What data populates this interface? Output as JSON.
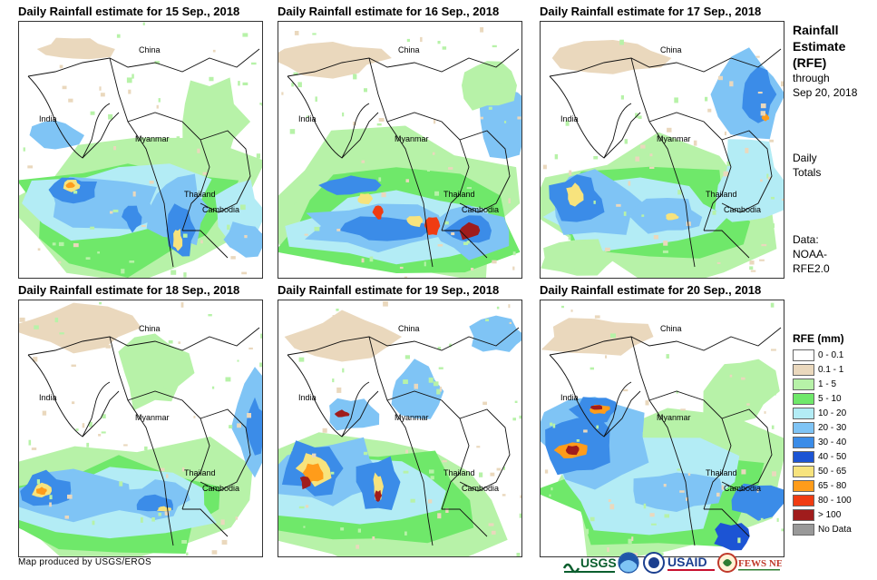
{
  "panels": [
    {
      "title": "Daily Rainfall estimate for 15 Sep., 2018",
      "day": 15
    },
    {
      "title": "Daily Rainfall estimate for 16 Sep., 2018",
      "day": 16
    },
    {
      "title": "Daily Rainfall estimate for 17 Sep., 2018",
      "day": 17
    },
    {
      "title": "Daily Rainfall estimate for 18 Sep., 2018",
      "day": 18
    },
    {
      "title": "Daily Rainfall estimate for 19 Sep., 2018",
      "day": 19
    },
    {
      "title": "Daily Rainfall estimate for 20 Sep., 2018",
      "day": 20
    }
  ],
  "map_labels": {
    "china": "China",
    "india": "India",
    "myanmar": "Myanmar",
    "thailand": "Thailand",
    "cambodia": "Cambodia"
  },
  "side": {
    "title_line1": "Rainfall",
    "title_line2": "Estimate",
    "title_line3": "(RFE)",
    "through": "through",
    "through_date": "Sep 20, 2018",
    "daily_line1": "Daily",
    "daily_line2": "Totals",
    "data_line1": "Data:",
    "data_line2": "NOAA-",
    "data_line3": "RFE2.0"
  },
  "legend": {
    "title": "RFE (mm)",
    "items": [
      {
        "label": "0 - 0.1",
        "color": "#ffffff"
      },
      {
        "label": "0.1 - 1",
        "color": "#ead8bd"
      },
      {
        "label": "1 - 5",
        "color": "#b7f2a8"
      },
      {
        "label": "5 - 10",
        "color": "#6fe86a"
      },
      {
        "label": "10 - 20",
        "color": "#b3ecf5"
      },
      {
        "label": "20 - 30",
        "color": "#7fc4f5"
      },
      {
        "label": "30 - 40",
        "color": "#3b8ce8"
      },
      {
        "label": "40 - 50",
        "color": "#1c54d4"
      },
      {
        "label": "50 - 65",
        "color": "#f7e37d"
      },
      {
        "label": "65 - 80",
        "color": "#ff9c1a"
      },
      {
        "label": "80 - 100",
        "color": "#f03c12"
      },
      {
        "label": "> 100",
        "color": "#a01c1c"
      },
      {
        "label": "No Data",
        "color": "#999999"
      }
    ]
  },
  "credit": "Map produced by USGS/EROS",
  "logos": {
    "usgs": "USGS",
    "usaid": "USAID",
    "fewsnet": "FEWS NET"
  }
}
